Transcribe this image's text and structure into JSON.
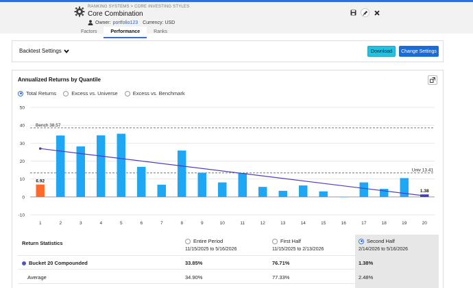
{
  "header": {
    "breadcrumb": "RANKING SYSTEMS > CORE INVESTING STYLES",
    "title": "Core Combination",
    "owner_label": "Owner:",
    "owner": "portfolio123",
    "currency": "Currency: USD",
    "tabs": [
      {
        "label": "Factors",
        "active": false
      },
      {
        "label": "Performance",
        "active": true
      },
      {
        "label": "Ranks",
        "active": false
      }
    ]
  },
  "toolbar": {
    "backtest_settings": "Backtest Settings",
    "download": "Download",
    "change_settings": "Change Settings"
  },
  "chart_section": {
    "title": "Annualized Returns by Quantile",
    "radio_options": [
      {
        "label": "Total Returns",
        "selected": true
      },
      {
        "label": "Excess vs. Universe",
        "selected": false
      },
      {
        "label": "Excess vs. Benchmark",
        "selected": false
      }
    ]
  },
  "chart_data": {
    "type": "bar",
    "categories": [
      "1",
      "2",
      "3",
      "4",
      "5",
      "6",
      "7",
      "8",
      "9",
      "10",
      "11",
      "12",
      "13",
      "14",
      "15",
      "16",
      "17",
      "18",
      "19",
      "20"
    ],
    "values": [
      6.92,
      34.3,
      28.2,
      34.4,
      35.3,
      16.8,
      6.8,
      25.9,
      13.5,
      8.1,
      13.3,
      5.6,
      3.4,
      6.4,
      3.1,
      0,
      8.1,
      4.5,
      10.5,
      1.38
    ],
    "ylim": [
      -10,
      50
    ],
    "yticks": [
      -10,
      0,
      10,
      20,
      30,
      40,
      50
    ],
    "grid": true,
    "highlight_colors": {
      "first": "#ff6a2b",
      "last": "#4040a8",
      "default": "#1ea7f5"
    },
    "trend_line": {
      "start": 27,
      "end": 0.6,
      "color": "#4a3cc0"
    },
    "reference_lines": [
      {
        "label": "Bench 38.57",
        "value": 38.57
      },
      {
        "label": "Univ 13.41",
        "value": 13.41
      }
    ],
    "data_labels": [
      {
        "index": 0,
        "text": "6.92"
      },
      {
        "index": 19,
        "text": "1.38"
      }
    ]
  },
  "stats": {
    "title": "Return Statistics",
    "periods": [
      {
        "label": "Entire Period",
        "range": "11/15/2025 to 5/16/2026",
        "selected": false
      },
      {
        "label": "First Half",
        "range": "11/15/2025 to 2/13/2026",
        "selected": false
      },
      {
        "label": "Second Half",
        "range": "2/14/2026 to 5/16/2026",
        "selected": true
      }
    ],
    "rows": [
      {
        "label": "Bucket 20 Compounded",
        "values": [
          "33.85%",
          "76.71%",
          "1.38%"
        ],
        "bold": true
      },
      {
        "label": "Average",
        "values": [
          "34.90%",
          "77.33%",
          "2.48%"
        ],
        "bold": false
      }
    ]
  }
}
